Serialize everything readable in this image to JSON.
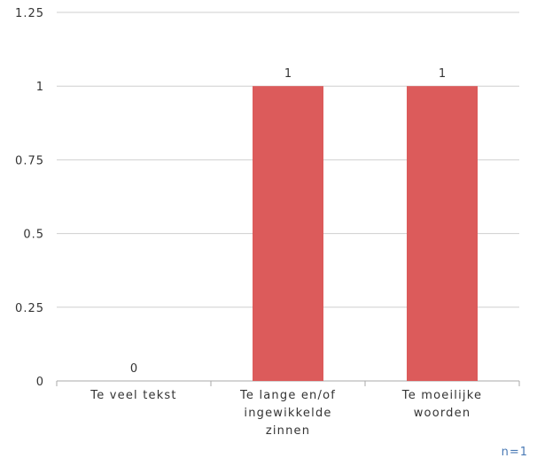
{
  "chart_data": {
    "type": "bar",
    "categories": [
      [
        "Te veel tekst"
      ],
      [
        "Te lange en/of",
        "ingewikkelde",
        "zinnen"
      ],
      [
        "Te moeilijke",
        "woorden"
      ]
    ],
    "values": [
      0,
      1,
      1
    ],
    "data_labels": [
      "0",
      "1",
      "1"
    ],
    "ylim": [
      0,
      1.25
    ],
    "yticks": [
      0,
      0.25,
      0.5,
      0.75,
      1,
      1.25
    ],
    "ytick_labels": [
      "0",
      "0.25",
      "0.5",
      "0.75",
      "1",
      "1.25"
    ],
    "grid": true,
    "bar_color": "#dc5b5b",
    "grid_color": "#cfcfcf",
    "axis_color": "#aaaaaa"
  },
  "footer": {
    "sample_size": "n=1"
  }
}
